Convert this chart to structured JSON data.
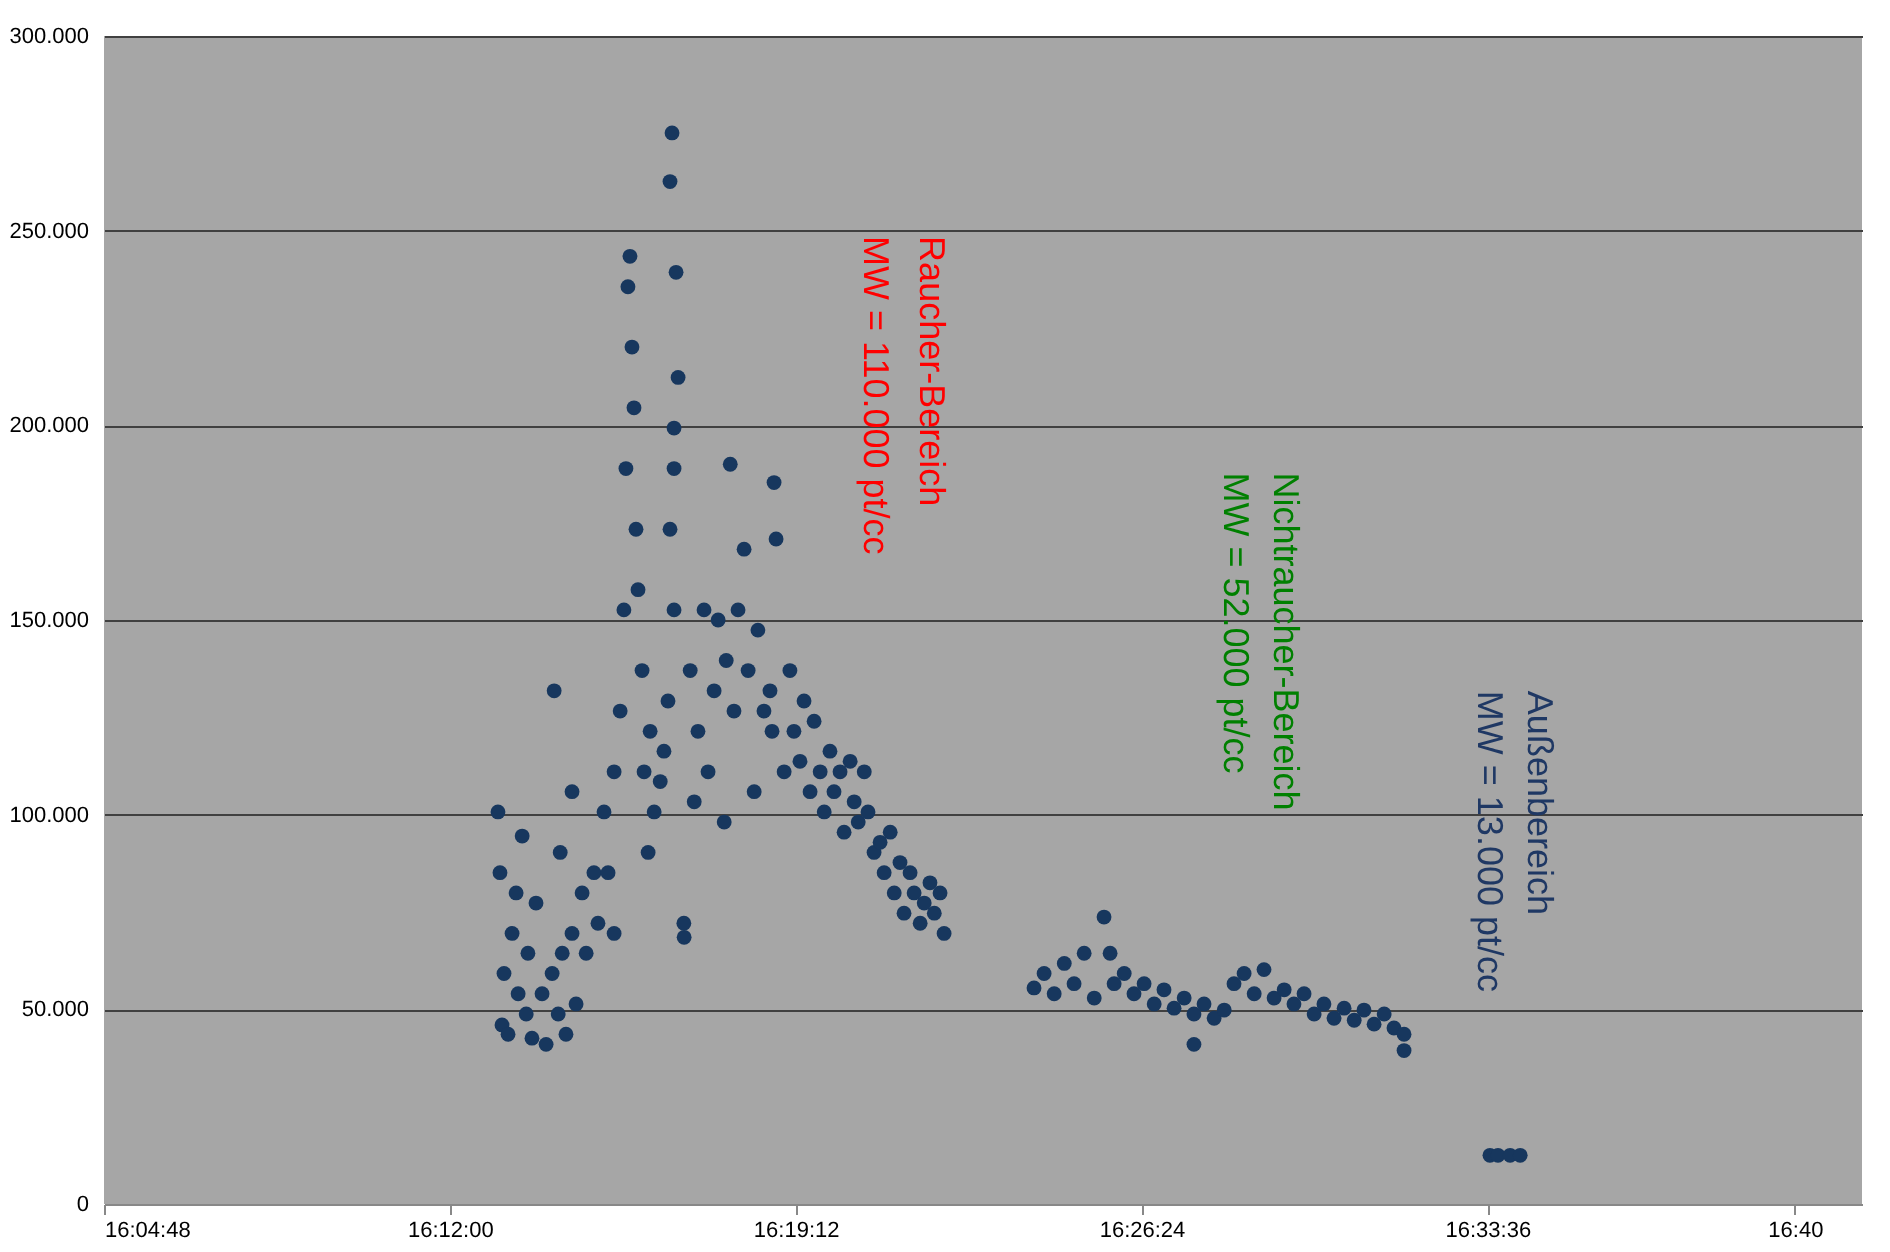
{
  "chart_data": {
    "type": "scatter",
    "marker": "circle",
    "grid": "y",
    "xlim": [
      16.08,
      16.69
    ],
    "ylim": [
      0,
      300000
    ],
    "xticks": [
      {
        "value": 16.08,
        "label": "16:04:48"
      },
      {
        "value": 16.2,
        "label": "16:12:00"
      },
      {
        "value": 16.32,
        "label": "16:19:12"
      },
      {
        "value": 16.44,
        "label": "16:26:24"
      },
      {
        "value": 16.56,
        "label": "16:33:36"
      },
      {
        "value": 16.6667,
        "label": "16:40"
      }
    ],
    "yticks": [
      0,
      {
        "value": 50000,
        "label": "50.000"
      },
      {
        "value": 100000,
        "label": "100.000"
      },
      {
        "value": 150000,
        "label": "150.000"
      },
      {
        "value": 200000,
        "label": "200.000"
      },
      {
        "value": 250000,
        "label": "250.000"
      },
      {
        "value": 300000,
        "label": "300.000"
      }
    ],
    "series": [
      {
        "color": "#17375e",
        "x": [
          16.2167,
          16.2174,
          16.2181,
          16.2188,
          16.2202,
          16.2216,
          16.223,
          16.2237,
          16.2251,
          16.2265,
          16.2271,
          16.2285,
          16.2299,
          16.232,
          16.2334,
          16.2355,
          16.2362,
          16.2376,
          16.2383,
          16.239,
          16.2403,
          16.2424,
          16.2424,
          16.2438,
          16.2459,
          16.2473,
          16.25,
          16.2514,
          16.2535,
          16.2549,
          16.257,
          16.257,
          16.2591,
          16.2604,
          16.2611,
          16.2618,
          16.2625,
          16.2632,
          16.2639,
          16.2646,
          16.2653,
          16.2667,
          16.2674,
          16.2688,
          16.2695,
          16.2709,
          16.273,
          16.2743,
          16.2757,
          16.2764,
          16.2771,
          16.2785,
          16.2792,
          16.2778,
          16.2778,
          16.2764,
          16.2778,
          16.2812,
          16.2813,
          16.2834,
          16.2848,
          16.2861,
          16.2882,
          16.2896,
          16.2917,
          16.2931,
          16.2952,
          16.2959,
          16.2973,
          16.2986,
          16.3,
          16.3021,
          16.3035,
          16.3056,
          16.3069,
          16.309,
          16.3111,
          16.3118,
          16.3125,
          16.3132,
          16.316,
          16.318,
          16.3194,
          16.3215,
          16.3229,
          16.325,
          16.3264,
          16.3285,
          16.3299,
          16.3319,
          16.3333,
          16.3354,
          16.3368,
          16.3389,
          16.3403,
          16.3417,
          16.3438,
          16.3451,
          16.3472,
          16.3493,
          16.3507,
          16.3528,
          16.3542,
          16.3562,
          16.3576,
          16.3597,
          16.3611,
          16.3632,
          16.3646,
          16.3666,
          16.3681,
          16.3701,
          16.3715,
          16.4027,
          16.4062,
          16.4097,
          16.4132,
          16.4166,
          16.4201,
          16.4236,
          16.427,
          16.4291,
          16.4305,
          16.434,
          16.4374,
          16.4409,
          16.4444,
          16.4478,
          16.4513,
          16.4548,
          16.4582,
          16.4582,
          16.4617,
          16.4652,
          16.4687,
          16.4721,
          16.4756,
          16.4791,
          16.4825,
          16.486,
          16.4895,
          16.4929,
          16.4964,
          16.4999,
          16.5033,
          16.5068,
          16.5103,
          16.5138,
          16.5172,
          16.5207,
          16.5242,
          16.5276,
          16.5311,
          16.5311,
          16.5609,
          16.5637,
          16.5679,
          16.5714
        ],
        "values": [
          100700,
          85100,
          46000,
          59200,
          43600,
          69500,
          79900,
          54000,
          94500,
          48800,
          64400,
          42600,
          77300,
          54000,
          41000,
          59200,
          131800,
          48800,
          90300,
          64400,
          43600,
          69500,
          105900,
          51400,
          79900,
          64400,
          85100,
          72100,
          100700,
          85100,
          111000,
          69500,
          126600,
          152600,
          188900,
          235600,
          243400,
          220100,
          204500,
          173300,
          157800,
          137000,
          111000,
          90300,
          121400,
          100700,
          108500,
          116300,
          129200,
          262600,
          275100,
          239300,
          212300,
          199300,
          188900,
          173300,
          152600,
          72100,
          68500,
          137000,
          103300,
          121400,
          152600,
          111000,
          131800,
          150000,
          98100,
          139600,
          190000,
          126600,
          152600,
          168200,
          137000,
          105900,
          147400,
          126600,
          131800,
          121400,
          185300,
          170800,
          111000,
          137000,
          121400,
          113700,
          129200,
          105900,
          124000,
          111000,
          100700,
          116300,
          105900,
          111000,
          95500,
          113700,
          103300,
          98100,
          111000,
          100700,
          90300,
          92900,
          85100,
          95500,
          79900,
          87700,
          74700,
          85100,
          79900,
          72100,
          77300,
          82500,
          74700,
          79900,
          69500,
          55500,
          59200,
          54000,
          61800,
          56600,
          64400,
          52900,
          73700,
          64400,
          56600,
          59200,
          54000,
          56600,
          51400,
          55000,
          50300,
          52900,
          48800,
          41000,
          51400,
          47700,
          49800,
          56600,
          59200,
          54000,
          60200,
          52900,
          55000,
          51400,
          54000,
          48800,
          51400,
          47700,
          50300,
          47200,
          49800,
          46200,
          48800,
          45200,
          43600,
          39400,
          12500,
          12500,
          12500,
          12500
        ]
      }
    ],
    "annotations": [
      "Raucher-Bereich",
      "MW = 110.000 pt/cc",
      "Nichtraucher-Bereich",
      "MW = 52.000 pt/cc",
      "Außenbereich",
      "MW = 13.000 pt/cc"
    ]
  }
}
